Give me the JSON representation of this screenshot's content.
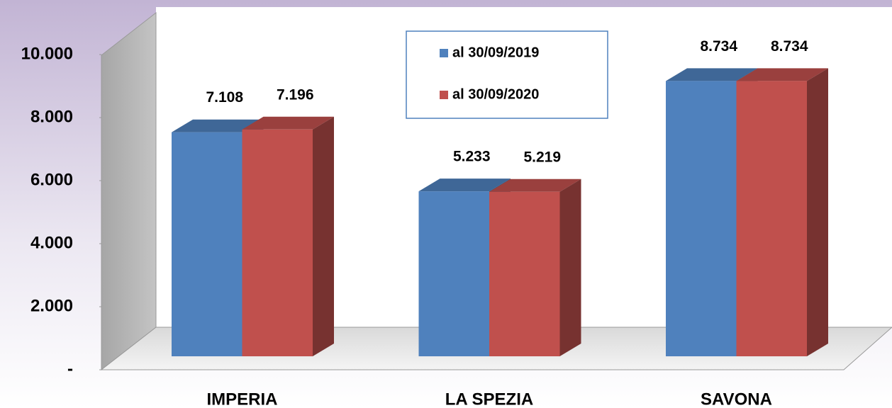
{
  "chart_data": {
    "type": "bar3d",
    "categories": [
      "IMPERIA",
      "LA SPEZIA",
      "SAVONA"
    ],
    "series": [
      {
        "name": "al 30/09/2019",
        "color": "#4f81bd",
        "values": [
          7108,
          5233,
          8734
        ],
        "value_labels": [
          "7.108",
          "5.233",
          "8.734"
        ]
      },
      {
        "name": "al 30/09/2020",
        "color": "#c0504d",
        "values": [
          7196,
          5219,
          8734
        ],
        "value_labels": [
          "7.196",
          "5.219",
          "8.734"
        ]
      }
    ],
    "ylim": [
      0,
      10000
    ],
    "yticks": [
      {
        "value": 0,
        "label": "-"
      },
      {
        "value": 2000,
        "label": "2.000"
      },
      {
        "value": 4000,
        "label": "4.000"
      },
      {
        "value": 6000,
        "label": "6.000"
      },
      {
        "value": 8000,
        "label": "8.000"
      },
      {
        "value": 10000,
        "label": "10.000"
      }
    ],
    "legend": "top-center"
  }
}
